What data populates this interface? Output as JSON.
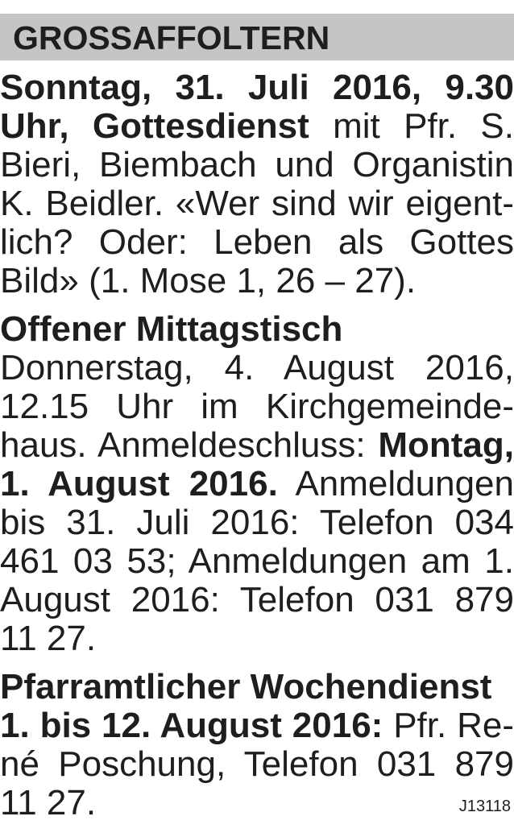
{
  "header": {
    "title": "GROSSAFFOLTERN",
    "band_color": "#c5c5c5"
  },
  "sections": [
    {
      "lines": [
        [
          {
            "t": "Sonntag, 31. Juli 2016, 9.30",
            "b": true
          }
        ],
        [
          {
            "t": "Uhr, Gottesdienst",
            "b": true
          },
          {
            "t": " mit Pfr. S.",
            "b": false
          }
        ],
        [
          {
            "t": "Bieri, Biembach und Organistin",
            "b": false
          }
        ],
        [
          {
            "t": "K. Beidler. «Wer sind wir eigent-",
            "b": false
          }
        ],
        [
          {
            "t": "lich? Oder: Leben als Gottes",
            "b": false
          }
        ],
        [
          {
            "t": "Bild» (1. Mose 1, 26 – 27).",
            "b": false
          }
        ]
      ]
    },
    {
      "lines": [
        [
          {
            "t": "Offener Mittagstisch",
            "b": true
          }
        ],
        [
          {
            "t": "Donnerstag, 4. August 2016,",
            "b": false
          }
        ],
        [
          {
            "t": "12.15 Uhr im Kirchgemeinde-",
            "b": false
          }
        ],
        [
          {
            "t": "haus. Anmeldeschluss: ",
            "b": false
          },
          {
            "t": "Montag,",
            "b": true
          }
        ],
        [
          {
            "t": "1. August 2016.",
            "b": true
          },
          {
            "t": " Anmeldungen",
            "b": false
          }
        ],
        [
          {
            "t": "bis 31. Juli 2016: Telefon 034",
            "b": false
          }
        ],
        [
          {
            "t": "461 03 53; Anmeldungen am 1.",
            "b": false
          }
        ],
        [
          {
            "t": "August 2016: Telefon 031 879",
            "b": false
          }
        ],
        [
          {
            "t": "11 27.",
            "b": false
          }
        ]
      ]
    },
    {
      "lines": [
        [
          {
            "t": "Pfarramtlicher Wochendienst",
            "b": true
          }
        ],
        [
          {
            "t": "1. bis 12. August 2016:",
            "b": true
          },
          {
            "t": " Pfr. Re-",
            "b": false
          }
        ],
        [
          {
            "t": "né Poschung, Telefon 031 879",
            "b": false
          }
        ],
        [
          {
            "t": "11 27.",
            "b": false
          }
        ]
      ]
    }
  ],
  "code": "J13118"
}
